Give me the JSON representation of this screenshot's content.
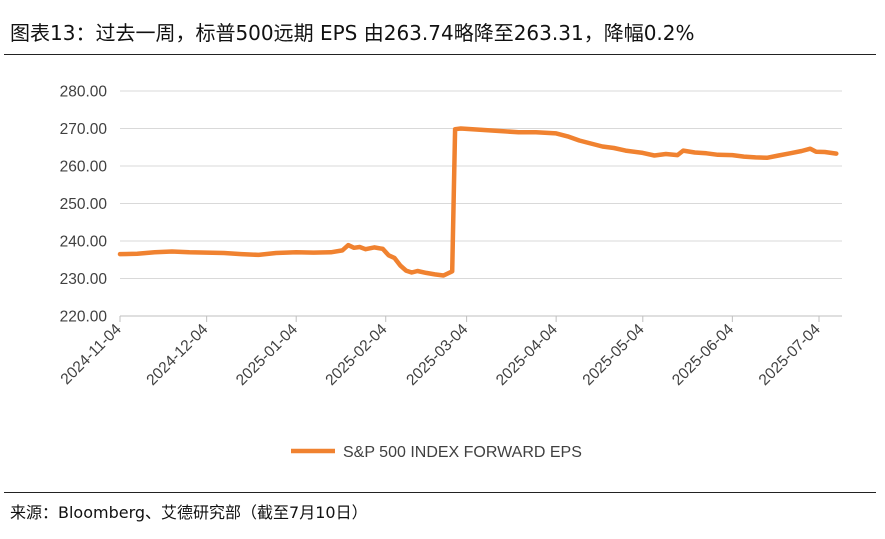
{
  "header": {
    "title": "图表13：过去一周，标普500远期 EPS 由263.74略降至263.31，降幅0.2%"
  },
  "footer": {
    "source": "来源：Bloomberg、艾德研究部（截至7月10日）"
  },
  "colors": {
    "series": "#F08230",
    "grid": "#D9D9D9",
    "text": "#404040"
  },
  "chart_data": {
    "type": "line",
    "title": "",
    "xlabel": "",
    "ylabel": "",
    "ylim": [
      220,
      280
    ],
    "yticks": [
      "220.00",
      "230.00",
      "240.00",
      "250.00",
      "260.00",
      "270.00",
      "280.00"
    ],
    "xticks": [
      "2024-11-04",
      "2024-12-04",
      "2025-01-04",
      "2025-02-04",
      "2025-03-04",
      "2025-04-04",
      "2025-05-04",
      "2025-06-04",
      "2025-07-04"
    ],
    "legend": "bottom",
    "grid": true,
    "series": [
      {
        "name": "S&P 500 INDEX FORWARD EPS",
        "points": [
          [
            "2024-11-04",
            236.5
          ],
          [
            "2024-11-10",
            236.6
          ],
          [
            "2024-11-16",
            237.0
          ],
          [
            "2024-11-22",
            237.2
          ],
          [
            "2024-11-28",
            237.0
          ],
          [
            "2024-12-04",
            236.9
          ],
          [
            "2024-12-10",
            236.8
          ],
          [
            "2024-12-16",
            236.5
          ],
          [
            "2024-12-22",
            236.3
          ],
          [
            "2024-12-28",
            236.8
          ],
          [
            "2025-01-04",
            237.0
          ],
          [
            "2025-01-10",
            236.9
          ],
          [
            "2025-01-16",
            237.0
          ],
          [
            "2025-01-20",
            237.5
          ],
          [
            "2025-01-22",
            238.9
          ],
          [
            "2025-01-24",
            238.2
          ],
          [
            "2025-01-26",
            238.4
          ],
          [
            "2025-01-28",
            237.8
          ],
          [
            "2025-01-31",
            238.3
          ],
          [
            "2025-02-03",
            237.9
          ],
          [
            "2025-02-05",
            236.2
          ],
          [
            "2025-02-07",
            235.5
          ],
          [
            "2025-02-09",
            233.5
          ],
          [
            "2025-02-11",
            232.1
          ],
          [
            "2025-02-13",
            231.6
          ],
          [
            "2025-02-15",
            232.0
          ],
          [
            "2025-02-18",
            231.5
          ],
          [
            "2025-02-21",
            231.1
          ],
          [
            "2025-02-24",
            230.8
          ],
          [
            "2025-02-27",
            231.9
          ],
          [
            "2025-02-28",
            269.8
          ],
          [
            "2025-03-02",
            270.0
          ],
          [
            "2025-03-06",
            269.8
          ],
          [
            "2025-03-10",
            269.6
          ],
          [
            "2025-03-16",
            269.3
          ],
          [
            "2025-03-22",
            269.0
          ],
          [
            "2025-03-28",
            269.0
          ],
          [
            "2025-04-04",
            268.7
          ],
          [
            "2025-04-08",
            267.9
          ],
          [
            "2025-04-12",
            266.8
          ],
          [
            "2025-04-16",
            266.0
          ],
          [
            "2025-04-20",
            265.2
          ],
          [
            "2025-04-24",
            264.8
          ],
          [
            "2025-04-28",
            264.1
          ],
          [
            "2025-05-04",
            263.5
          ],
          [
            "2025-05-08",
            262.8
          ],
          [
            "2025-05-12",
            263.2
          ],
          [
            "2025-05-16",
            262.9
          ],
          [
            "2025-05-18",
            264.1
          ],
          [
            "2025-05-22",
            263.6
          ],
          [
            "2025-05-26",
            263.4
          ],
          [
            "2025-05-30",
            263.0
          ],
          [
            "2025-06-04",
            262.9
          ],
          [
            "2025-06-08",
            262.5
          ],
          [
            "2025-06-12",
            262.3
          ],
          [
            "2025-06-16",
            262.2
          ],
          [
            "2025-06-20",
            262.8
          ],
          [
            "2025-06-24",
            263.4
          ],
          [
            "2025-06-28",
            264.0
          ],
          [
            "2025-07-01",
            264.6
          ],
          [
            "2025-07-03",
            263.8
          ],
          [
            "2025-07-06",
            263.74
          ],
          [
            "2025-07-10",
            263.31
          ]
        ]
      }
    ]
  }
}
